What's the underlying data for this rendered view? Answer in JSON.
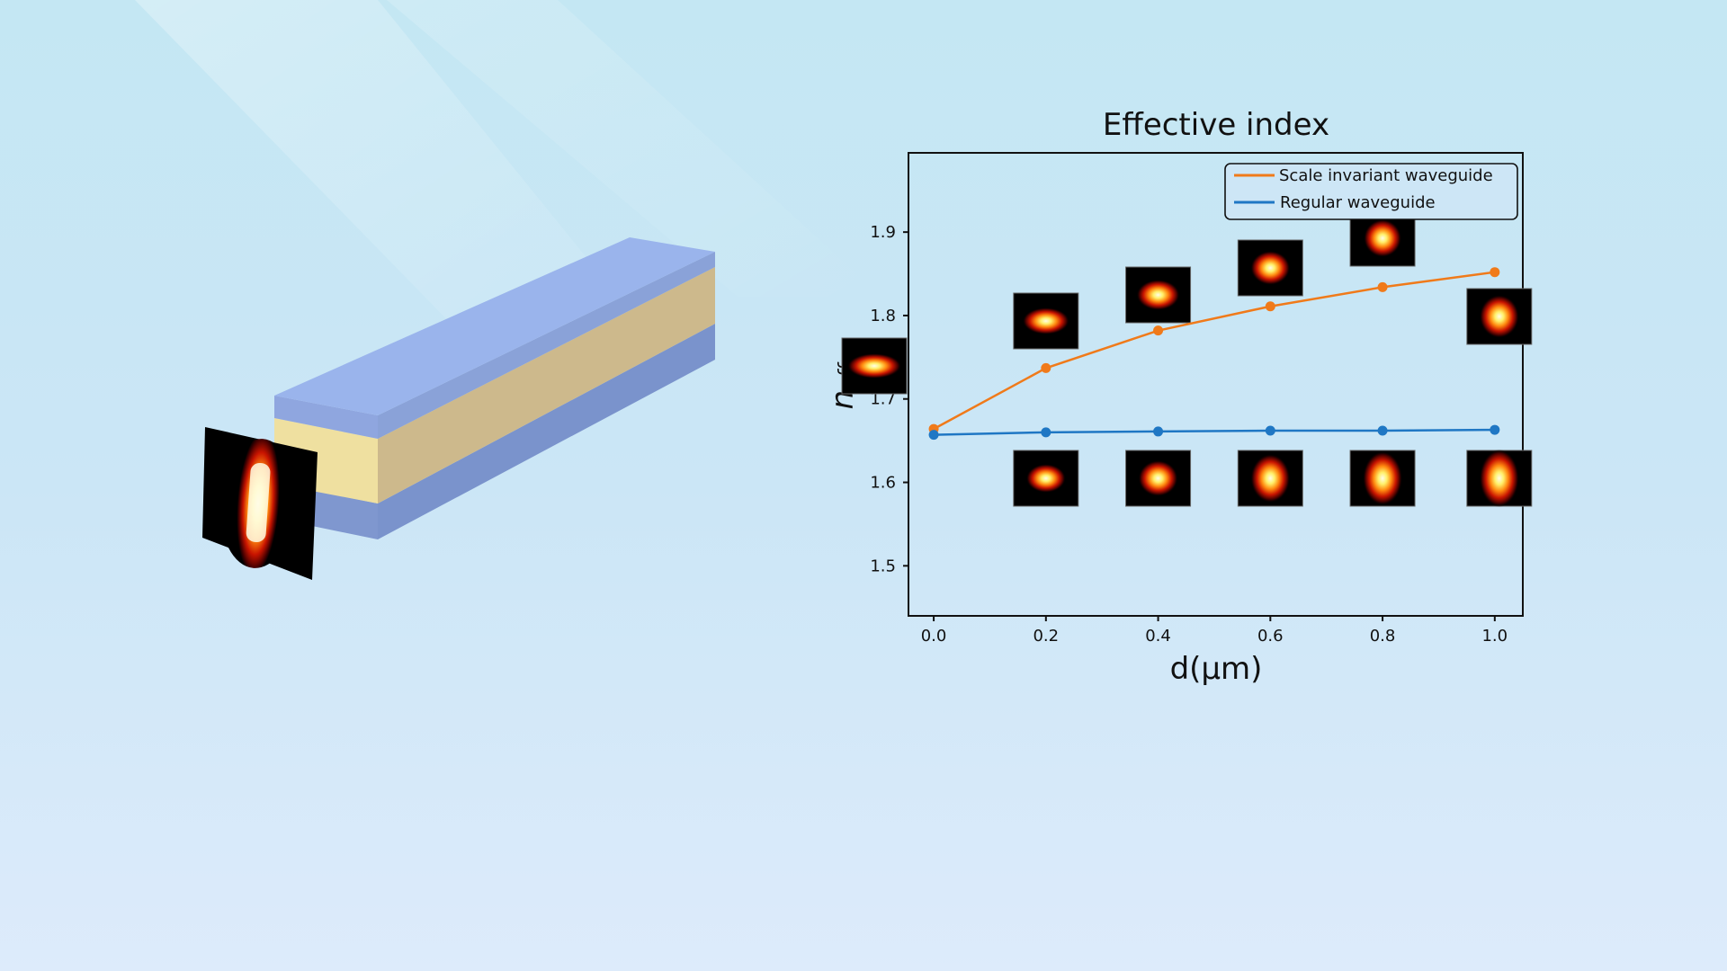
{
  "chart_data": {
    "type": "line",
    "title": "Effective index",
    "xlabel": "d(μm)",
    "ylabel_main": "n",
    "ylabel_sub": "eff",
    "xlim": [
      -0.045,
      1.05
    ],
    "ylim": [
      1.44,
      1.995
    ],
    "x_ticks": [
      "0.0",
      "0.2",
      "0.4",
      "0.6",
      "0.8",
      "1.0"
    ],
    "y_ticks": [
      "1.5",
      "1.6",
      "1.7",
      "1.8",
      "1.9"
    ],
    "grid": false,
    "legend_position": "top-right",
    "x": [
      0.0,
      0.2,
      0.4,
      0.6,
      0.8,
      1.0
    ],
    "series": [
      {
        "name": "Scale invariant waveguide",
        "color": "#f07a1a",
        "values": [
          1.664,
          1.737,
          1.782,
          1.811,
          1.834,
          1.852
        ]
      },
      {
        "name": "Regular waveguide",
        "color": "#1f77c4",
        "values": [
          1.657,
          1.66,
          1.661,
          1.662,
          1.662,
          1.663
        ]
      }
    ],
    "mode_insets": {
      "scale_invariant": {
        "x": [
          0.0,
          0.2,
          0.4,
          0.6,
          0.8,
          1.0
        ],
        "shape": "increasingly square"
      },
      "regular": {
        "x": [
          0.2,
          0.4,
          0.6,
          0.8,
          1.0
        ],
        "shape": "increasingly vertical"
      }
    }
  },
  "illustration": {
    "cladding_color": "#9ab4ec",
    "core_color": "#ecd79a",
    "mode_profile": "vertical-elongated"
  }
}
